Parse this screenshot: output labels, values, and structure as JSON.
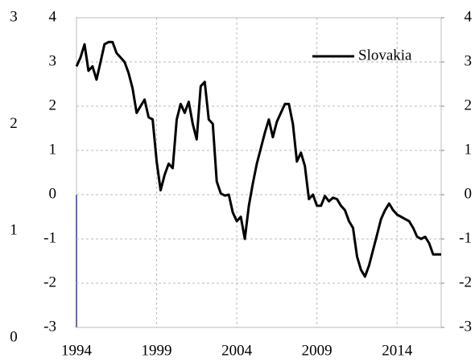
{
  "chart_data": {
    "type": "line",
    "x": [
      1994,
      1994.25,
      1994.5,
      1994.75,
      1995,
      1995.25,
      1995.5,
      1995.75,
      1996,
      1996.25,
      1996.5,
      1996.75,
      1997,
      1997.25,
      1997.5,
      1997.75,
      1998,
      1998.25,
      1998.5,
      1998.75,
      1999,
      1999.25,
      1999.5,
      1999.75,
      2000,
      2000.25,
      2000.5,
      2000.75,
      2001,
      2001.25,
      2001.5,
      2001.75,
      2002,
      2002.25,
      2002.5,
      2002.75,
      2003,
      2003.25,
      2003.5,
      2003.75,
      2004,
      2004.25,
      2004.5,
      2004.75,
      2005,
      2005.25,
      2005.5,
      2005.75,
      2006,
      2006.25,
      2006.5,
      2006.75,
      2007,
      2007.25,
      2007.5,
      2007.75,
      2008,
      2008.25,
      2008.5,
      2008.75,
      2009,
      2009.25,
      2009.5,
      2009.75,
      2010,
      2010.25,
      2010.5,
      2010.75,
      2011,
      2011.25,
      2011.5,
      2011.75,
      2012,
      2012.25,
      2012.5,
      2012.75,
      2013,
      2013.25,
      2013.5,
      2013.75,
      2014,
      2014.25,
      2014.5,
      2014.75,
      2015,
      2015.25,
      2015.5,
      2015.75,
      2016,
      2016.25,
      2016.5,
      2016.75
    ],
    "series": [
      {
        "name": "Slovakia",
        "color": "#000000",
        "values": [
          2.9,
          3.1,
          3.4,
          2.8,
          2.9,
          2.6,
          3.0,
          3.4,
          3.45,
          3.45,
          3.2,
          3.1,
          3.0,
          2.75,
          2.4,
          1.85,
          2.0,
          2.15,
          1.75,
          1.7,
          0.75,
          0.1,
          0.45,
          0.7,
          0.6,
          1.7,
          2.05,
          1.85,
          2.1,
          1.6,
          1.25,
          2.45,
          2.55,
          1.7,
          1.6,
          0.3,
          0.03,
          -0.02,
          0,
          -0.4,
          -0.6,
          -0.5,
          -1.0,
          -0.25,
          0.25,
          0.7,
          1.05,
          1.4,
          1.7,
          1.3,
          1.65,
          1.85,
          2.05,
          2.05,
          1.6,
          0.75,
          0.95,
          0.65,
          -0.1,
          0,
          -0.25,
          -0.25,
          -0.03,
          -0.15,
          -0.07,
          -0.1,
          -0.25,
          -0.35,
          -0.6,
          -0.75,
          -1.4,
          -1.7,
          -1.85,
          -1.6,
          -1.25,
          -0.9,
          -0.55,
          -0.35,
          -0.2,
          -0.35,
          -0.45,
          -0.5,
          -0.55,
          -0.6,
          -0.75,
          -0.95,
          -1.0,
          -0.95,
          -1.1,
          -1.35,
          -1.35,
          -1.35
        ]
      }
    ],
    "xlim": [
      1994,
      2016.75
    ],
    "xticks": [
      1994,
      1999,
      2004,
      2009,
      2014
    ],
    "ylim": [
      -3,
      4
    ],
    "yticks": [
      -3,
      -2,
      -1,
      0,
      1,
      2,
      3,
      4
    ],
    "y2lim": [
      -3,
      4
    ],
    "y2ticks": [
      -3,
      -2,
      -1,
      0,
      1,
      2,
      3,
      4
    ],
    "y3lim": [
      0,
      3
    ],
    "y3ticks": [
      0,
      1,
      2,
      3
    ],
    "grid": true,
    "legend": "upper right"
  }
}
